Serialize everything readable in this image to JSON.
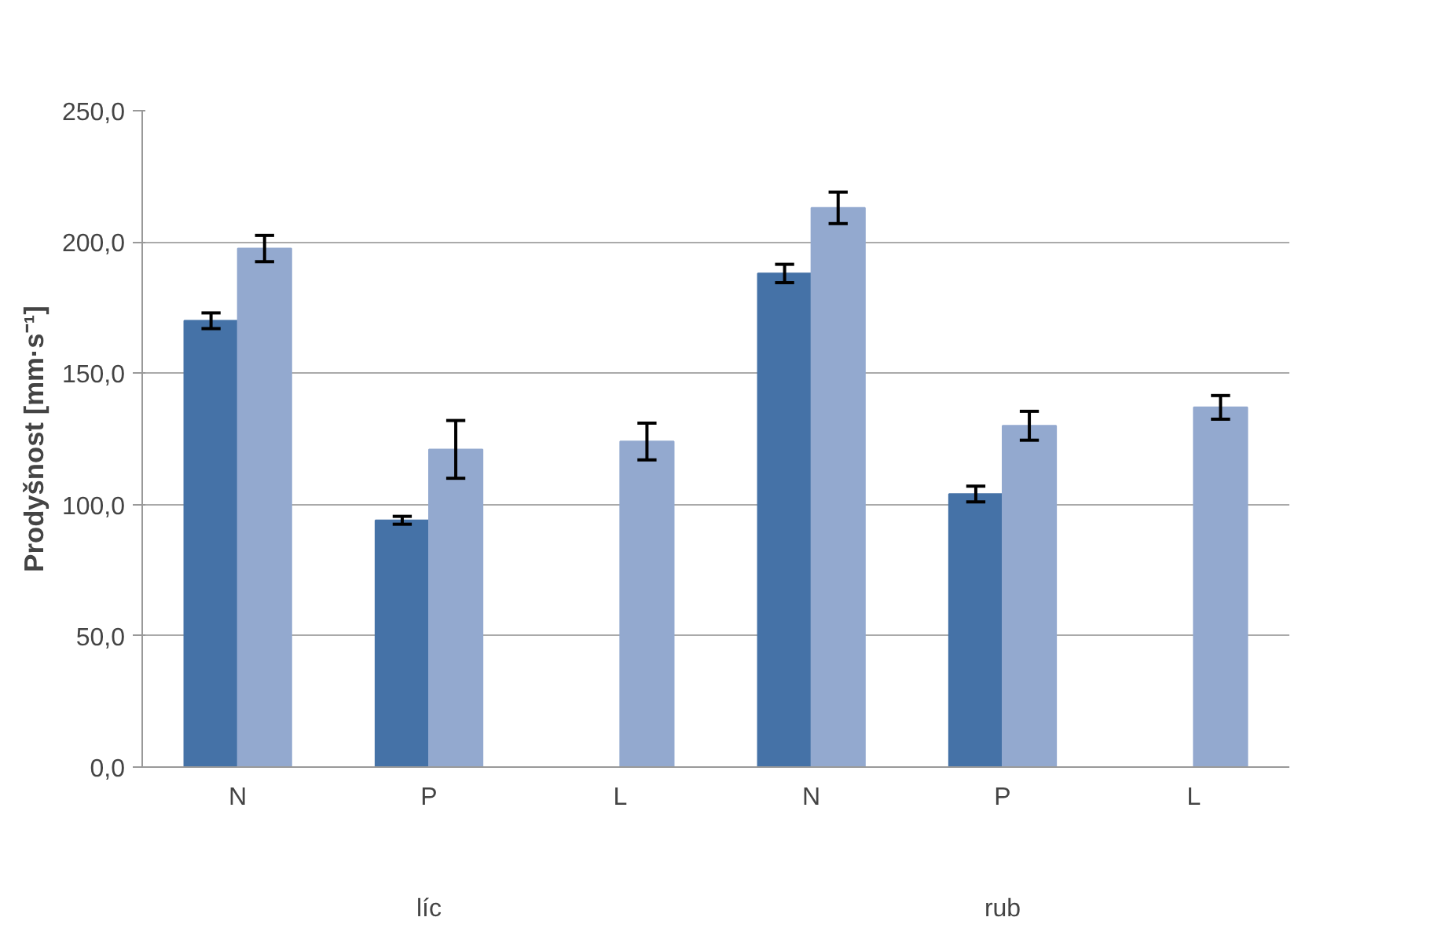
{
  "chart_data": {
    "type": "bar",
    "ylabel": "Prodyšnost [mm·s⁻¹]",
    "categories": [
      "N",
      "P",
      "L",
      "N",
      "P",
      "L"
    ],
    "annotations": [
      "líc",
      "rub"
    ],
    "series": [
      {
        "color": "#4572a7",
        "values": [
          170,
          94,
          null,
          188,
          104,
          null
        ],
        "errors": [
          3,
          1.5,
          null,
          3.5,
          3,
          null
        ]
      },
      {
        "color": "#93a9cf",
        "values": [
          197.5,
          121,
          124,
          213,
          130,
          137
        ],
        "errors": [
          5,
          11,
          7,
          6,
          5.5,
          4.5
        ]
      }
    ],
    "ylim": [
      0,
      250
    ],
    "yticks": [
      {
        "value": 0,
        "label": "0,0"
      },
      {
        "value": 50,
        "label": "50,0"
      },
      {
        "value": 100,
        "label": "100,0"
      },
      {
        "value": 150,
        "label": "150,0"
      },
      {
        "value": 200,
        "label": "200,0"
      },
      {
        "value": 250,
        "label": "250,0"
      }
    ],
    "grid": "y"
  }
}
